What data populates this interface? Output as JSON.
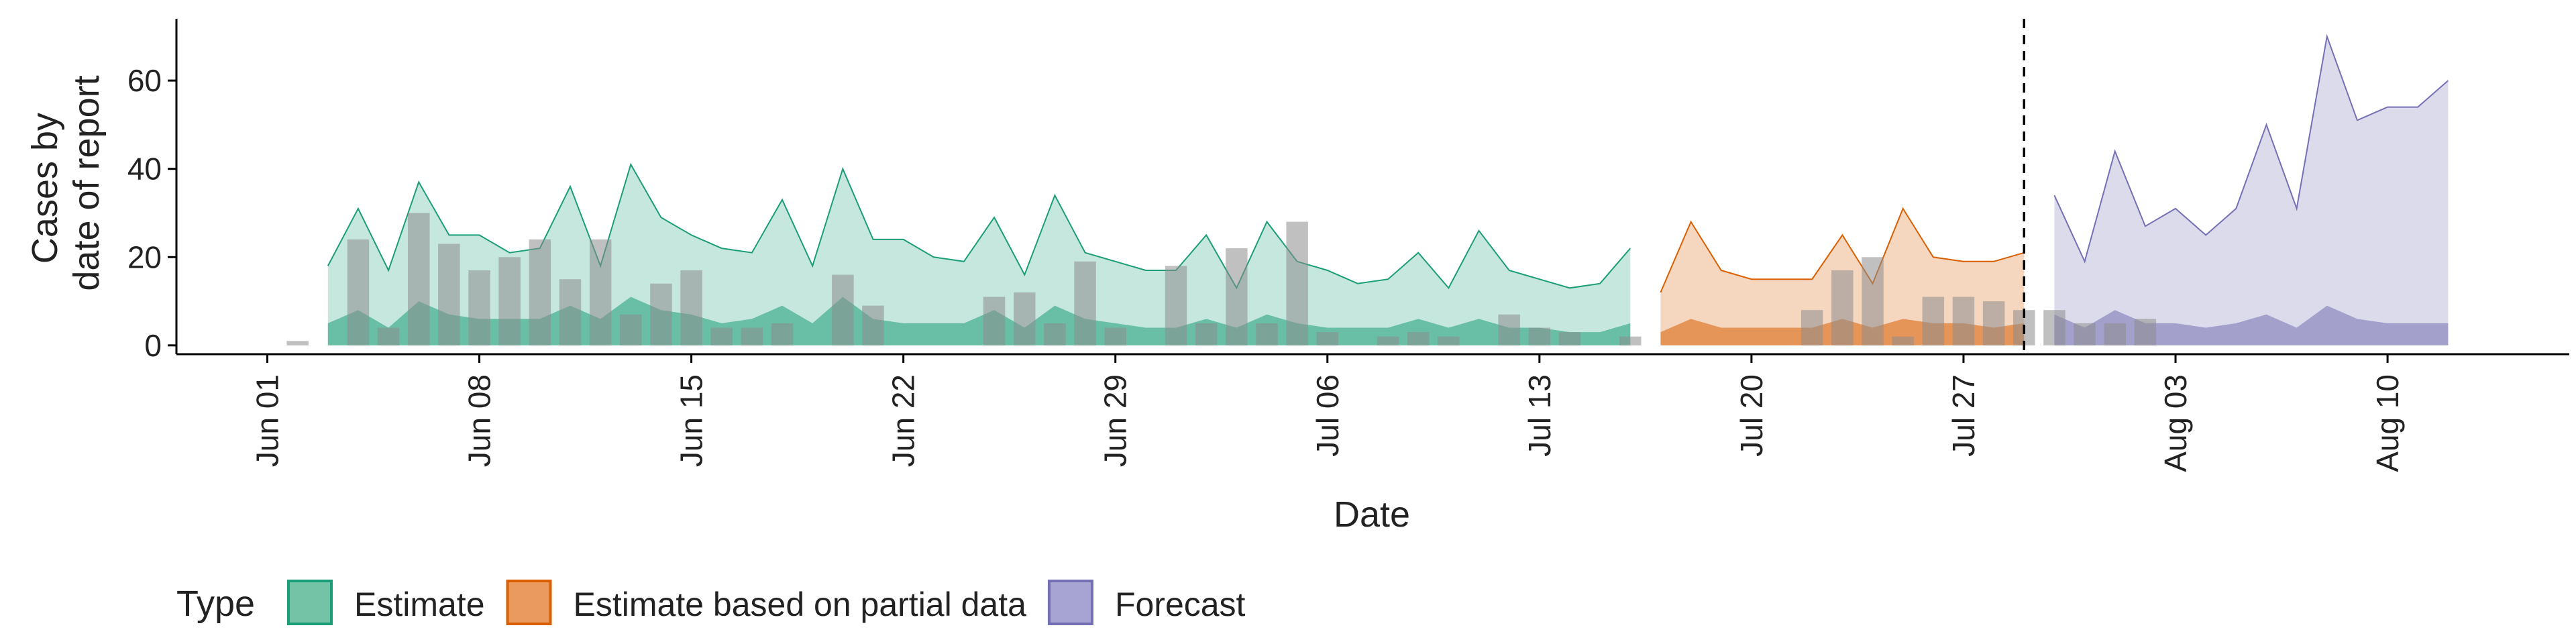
{
  "chart_data": {
    "type": "area",
    "xlabel": "Date",
    "ylabel_lines": [
      "Cases by",
      "date of report"
    ],
    "ylim": [
      -2,
      74
    ],
    "xlim": [
      "2021-05-29",
      "2021-08-16"
    ],
    "x_ticks": [
      {
        "date": "2021-06-01",
        "label": "Jun 01"
      },
      {
        "date": "2021-06-08",
        "label": "Jun 08"
      },
      {
        "date": "2021-06-15",
        "label": "Jun 15"
      },
      {
        "date": "2021-06-22",
        "label": "Jun 22"
      },
      {
        "date": "2021-06-29",
        "label": "Jun 29"
      },
      {
        "date": "2021-07-06",
        "label": "Jul 06"
      },
      {
        "date": "2021-07-13",
        "label": "Jul 13"
      },
      {
        "date": "2021-07-20",
        "label": "Jul 20"
      },
      {
        "date": "2021-07-27",
        "label": "Jul 27"
      },
      {
        "date": "2021-08-03",
        "label": "Aug 03"
      },
      {
        "date": "2021-08-10",
        "label": "Aug 10"
      }
    ],
    "y_ticks": [
      0,
      20,
      40,
      60
    ],
    "vline_date": "2021-07-29",
    "legend": {
      "title": "Type",
      "items": [
        "Estimate",
        "Estimate based on partial data",
        "Forecast"
      ]
    },
    "colors": {
      "Estimate": {
        "fill": "#1B9E77",
        "line": "#1B9E77",
        "swatch": "#74C3A6"
      },
      "Estimate based on partial data": {
        "fill": "#D95F02",
        "line": "#D95F02",
        "swatch": "#EA9A5E"
      },
      "Forecast": {
        "fill": "#7570B3",
        "line": "#7570B3",
        "swatch": "#A7A3D2"
      },
      "bars": "#8C8C8C",
      "vline": "#000000"
    },
    "series": [
      {
        "name": "Estimate",
        "start": "2021-06-03",
        "upper": [
          18,
          31,
          17,
          37,
          25,
          25,
          21,
          22,
          36,
          18,
          41,
          29,
          25,
          22,
          21,
          33,
          18,
          40,
          24,
          24,
          20,
          19,
          29,
          16,
          34,
          21,
          19,
          17,
          17,
          25,
          13,
          28,
          19,
          17,
          14,
          15,
          21,
          13,
          26,
          17,
          15,
          13,
          14,
          22
        ],
        "lower": [
          5,
          8,
          4,
          10,
          7,
          6,
          6,
          6,
          9,
          6,
          11,
          8,
          7,
          5,
          6,
          9,
          5,
          11,
          6,
          5,
          5,
          5,
          8,
          4,
          9,
          6,
          5,
          4,
          4,
          6,
          4,
          7,
          5,
          4,
          4,
          4,
          6,
          4,
          6,
          4,
          4,
          3,
          3,
          5
        ]
      },
      {
        "name": "Estimate based on partial data",
        "start": "2021-07-17",
        "upper": [
          12,
          28,
          17,
          15,
          15,
          15,
          25,
          14,
          31,
          20,
          19,
          19,
          21
        ],
        "lower": [
          3,
          6,
          4,
          4,
          4,
          4,
          6,
          4,
          6,
          5,
          5,
          4,
          5
        ]
      },
      {
        "name": "Forecast",
        "start": "2021-07-30",
        "upper": [
          34,
          19,
          44,
          27,
          31,
          25,
          31,
          50,
          31,
          70,
          51,
          54,
          54,
          60
        ],
        "lower": [
          7,
          4,
          8,
          5,
          5,
          4,
          5,
          7,
          4,
          9,
          6,
          5,
          5,
          5
        ]
      }
    ],
    "bars": {
      "start": "2021-06-02",
      "values": [
        1,
        0,
        24,
        4,
        30,
        23,
        17,
        20,
        24,
        15,
        24,
        7,
        14,
        17,
        4,
        4,
        5,
        0,
        16,
        9,
        0,
        0,
        0,
        11,
        12,
        5,
        19,
        4,
        0,
        18,
        5,
        22,
        5,
        28,
        3,
        0,
        2,
        3,
        2,
        0,
        7,
        4,
        3,
        0,
        2,
        0,
        0,
        0,
        0,
        0,
        8,
        17,
        20,
        2,
        11,
        11,
        10,
        8,
        8,
        5,
        5,
        6
      ]
    }
  }
}
